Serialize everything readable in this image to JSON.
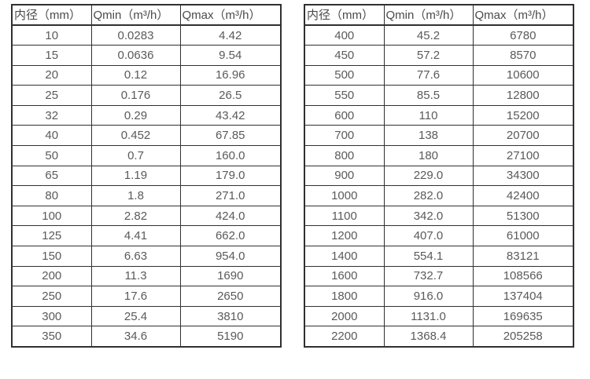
{
  "colors": {
    "border": "#303030",
    "header_text": "#4a4a4a",
    "cell_text": "#5a5a5a",
    "background": "#ffffff"
  },
  "tables": [
    {
      "name": "flow-table-small-diameters",
      "headers": [
        "内径（mm）",
        "Qmin（m³/h）",
        "Qmax（m³/h）"
      ],
      "rows": [
        [
          "10",
          "0.0283",
          "4.42"
        ],
        [
          "15",
          "0.0636",
          "9.54"
        ],
        [
          "20",
          "0.12",
          "16.96"
        ],
        [
          "25",
          "0.176",
          "26.5"
        ],
        [
          "32",
          "0.29",
          "43.42"
        ],
        [
          "40",
          "0.452",
          "67.85"
        ],
        [
          "50",
          "0.7",
          "160.0"
        ],
        [
          "65",
          "1.19",
          "179.0"
        ],
        [
          "80",
          "1.8",
          "271.0"
        ],
        [
          "100",
          "2.82",
          "424.0"
        ],
        [
          "125",
          "4.41",
          "662.0"
        ],
        [
          "150",
          "6.63",
          "954.0"
        ],
        [
          "200",
          "11.3",
          "1690"
        ],
        [
          "250",
          "17.6",
          "2650"
        ],
        [
          "300",
          "25.4",
          "3810"
        ],
        [
          "350",
          "34.6",
          "5190"
        ]
      ]
    },
    {
      "name": "flow-table-large-diameters",
      "headers": [
        "内径（mm）",
        "Qmin（m³/h）",
        "Qmax（m³/h）"
      ],
      "rows": [
        [
          "400",
          "45.2",
          "6780"
        ],
        [
          "450",
          "57.2",
          "8570"
        ],
        [
          "500",
          "77.6",
          "10600"
        ],
        [
          "550",
          "85.5",
          "12800"
        ],
        [
          "600",
          "110",
          "15200"
        ],
        [
          "700",
          "138",
          "20700"
        ],
        [
          "800",
          "180",
          "27100"
        ],
        [
          "900",
          "229.0",
          "34300"
        ],
        [
          "1000",
          "282.0",
          "42400"
        ],
        [
          "1100",
          "342.0",
          "51300"
        ],
        [
          "1200",
          "407.0",
          "61000"
        ],
        [
          "1400",
          "554.1",
          "83121"
        ],
        [
          "1600",
          "732.7",
          "108566"
        ],
        [
          "1800",
          "916.0",
          "137404"
        ],
        [
          "2000",
          "1131.0",
          "169635"
        ],
        [
          "2200",
          "1368.4",
          "205258"
        ]
      ]
    }
  ]
}
